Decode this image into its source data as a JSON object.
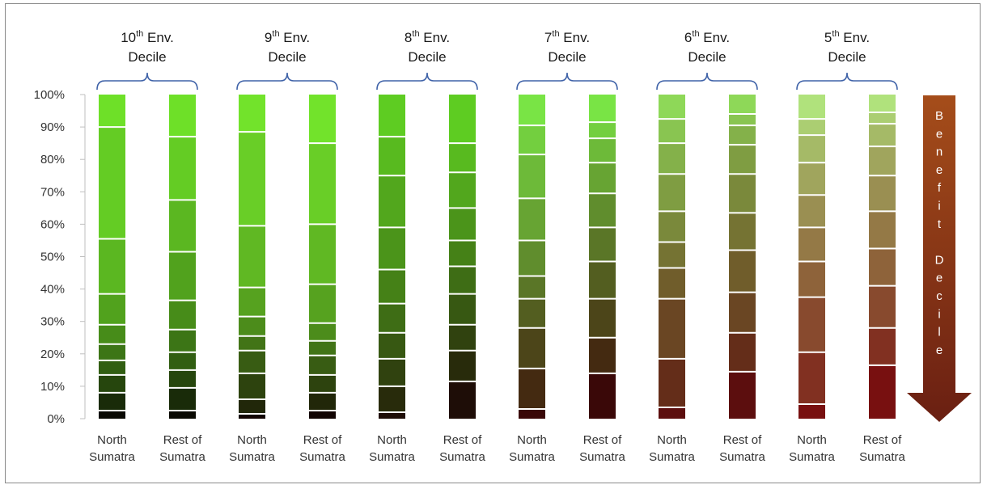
{
  "chart_data": {
    "type": "bar",
    "stacked": true,
    "percent_axis": true,
    "ylim": [
      0,
      100
    ],
    "y_ticks": [
      "0%",
      "10%",
      "20%",
      "30%",
      "40%",
      "50%",
      "60%",
      "70%",
      "80%",
      "90%",
      "100%"
    ],
    "grid": false,
    "groups": [
      {
        "title_num": "10",
        "title_sup": "th",
        "title_rest": " Env.",
        "title_line2": "Decile",
        "bars": [
          {
            "label_line1": "North",
            "label_line2": "Sumatra",
            "boundaries": [
              2.5,
              8,
              13.5,
              18,
              23,
              29,
              38.5,
              55.5,
              90,
              100
            ]
          },
          {
            "label_line1": "Rest of",
            "label_line2": "Sumatra",
            "boundaries": [
              2.5,
              9.5,
              15,
              20.5,
              27.5,
              36.5,
              51.5,
              67.5,
              87,
              100
            ]
          }
        ]
      },
      {
        "title_num": "9",
        "title_sup": "th",
        "title_rest": " Env.",
        "title_line2": "Decile",
        "bars": [
          {
            "label_line1": "North",
            "label_line2": "Sumatra",
            "boundaries": [
              1.5,
              6,
              14,
              21,
              25.5,
              31.5,
              40.5,
              59.5,
              88.5,
              100
            ]
          },
          {
            "label_line1": "Rest of",
            "label_line2": "Sumatra",
            "boundaries": [
              2.5,
              8,
              13.5,
              19.5,
              24,
              29.5,
              41.5,
              60,
              85,
              100
            ]
          }
        ]
      },
      {
        "title_num": "8",
        "title_sup": "th",
        "title_rest": " Env.",
        "title_line2": "Decile",
        "bars": [
          {
            "label_line1": "North",
            "label_line2": "Sumatra",
            "boundaries": [
              2,
              10,
              18.5,
              26.5,
              35.5,
              46,
              59,
              75,
              87,
              100
            ]
          },
          {
            "label_line1": "Rest of",
            "label_line2": "Sumatra",
            "boundaries": [
              11.5,
              21,
              29,
              38.5,
              47,
              55,
              65,
              76,
              85,
              100
            ]
          }
        ]
      },
      {
        "title_num": "7",
        "title_sup": "th",
        "title_rest": " Env.",
        "title_line2": "Decile",
        "bars": [
          {
            "label_line1": "North",
            "label_line2": "Sumatra",
            "boundaries": [
              3,
              15.5,
              28,
              37,
              44,
              55,
              68,
              81.5,
              90.5,
              100
            ]
          },
          {
            "label_line1": "Rest of",
            "label_line2": "Sumatra",
            "boundaries": [
              14,
              25,
              37,
              48.5,
              59,
              69.5,
              79,
              86.5,
              91.5,
              100
            ]
          }
        ]
      },
      {
        "title_num": "6",
        "title_sup": "th",
        "title_rest": " Env.",
        "title_line2": "Decile",
        "bars": [
          {
            "label_line1": "North",
            "label_line2": "Sumatra",
            "boundaries": [
              3.5,
              18.5,
              37,
              46.5,
              54.5,
              64,
              75.5,
              85,
              92.5,
              100
            ]
          },
          {
            "label_line1": "Rest of",
            "label_line2": "Sumatra",
            "boundaries": [
              14.5,
              26.5,
              39,
              52,
              63.5,
              75.5,
              84.5,
              90.5,
              94,
              100
            ]
          }
        ]
      },
      {
        "title_num": "5",
        "title_sup": "th",
        "title_rest": " Env.",
        "title_line2": "Decile",
        "bars": [
          {
            "label_line1": "North",
            "label_line2": "Sumatra",
            "boundaries": [
              4.5,
              20.5,
              37.5,
              48.5,
              59,
              69,
              79,
              87.5,
              92.5,
              100
            ]
          },
          {
            "label_line1": "Rest of",
            "label_line2": "Sumatra",
            "boundaries": [
              16.5,
              28,
              41,
              52.5,
              64,
              75,
              84,
              91,
              94.5,
              100
            ]
          }
        ]
      }
    ],
    "group_palettes": [
      [
        "#0a0a03",
        "#6ee028"
      ],
      [
        "#120503",
        "#72e32b"
      ],
      [
        "#1e0d07",
        "#5ecc22"
      ],
      [
        "#3a0808",
        "#79e445"
      ],
      [
        "#5c0e0e",
        "#8ed858"
      ],
      [
        "#781010",
        "#b0e27c"
      ]
    ],
    "arrow": {
      "letters": [
        "B",
        "e",
        "n",
        "e",
        "f",
        "i",
        "t",
        "",
        "D",
        "e",
        "c",
        "i",
        "l",
        "e"
      ],
      "color_top": "#a54d1a",
      "color_bottom": "#6a1f12",
      "text_color": "#ffffff"
    },
    "bracket_color": "#3f62a8"
  }
}
